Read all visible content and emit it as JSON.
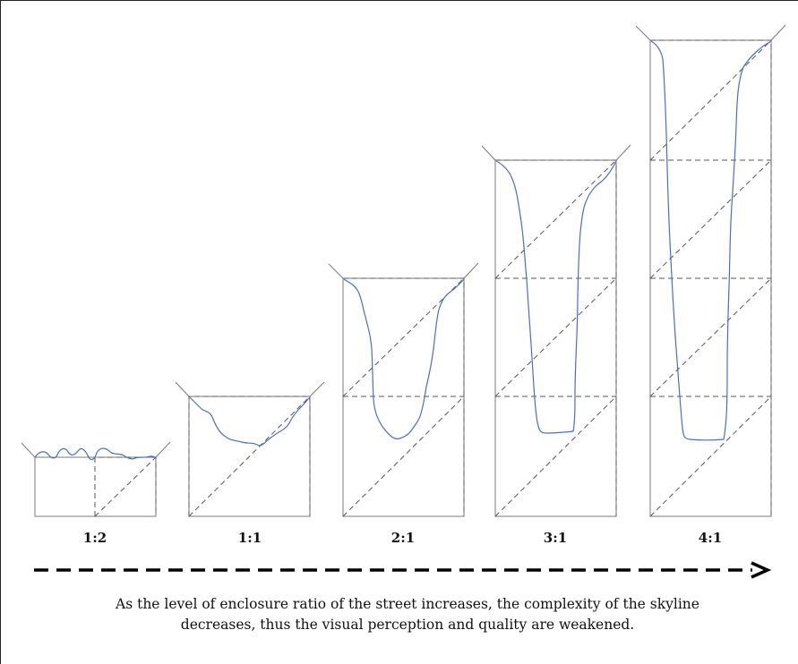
{
  "figure": {
    "ratios": [
      {
        "label": "1:2"
      },
      {
        "label": "1:1"
      },
      {
        "label": "2:1"
      },
      {
        "label": "3:1"
      },
      {
        "label": "4:1"
      }
    ],
    "caption_line1": "As the level of enclosure ratio of the street increases, the complexity of the skyline",
    "caption_line2": "decreases, thus the visual perception and quality are weakened."
  },
  "colors": {
    "skyline": "#4a6fbf",
    "frame": "#7a7a7a",
    "dash": "#555555",
    "arrow": "#000000"
  }
}
